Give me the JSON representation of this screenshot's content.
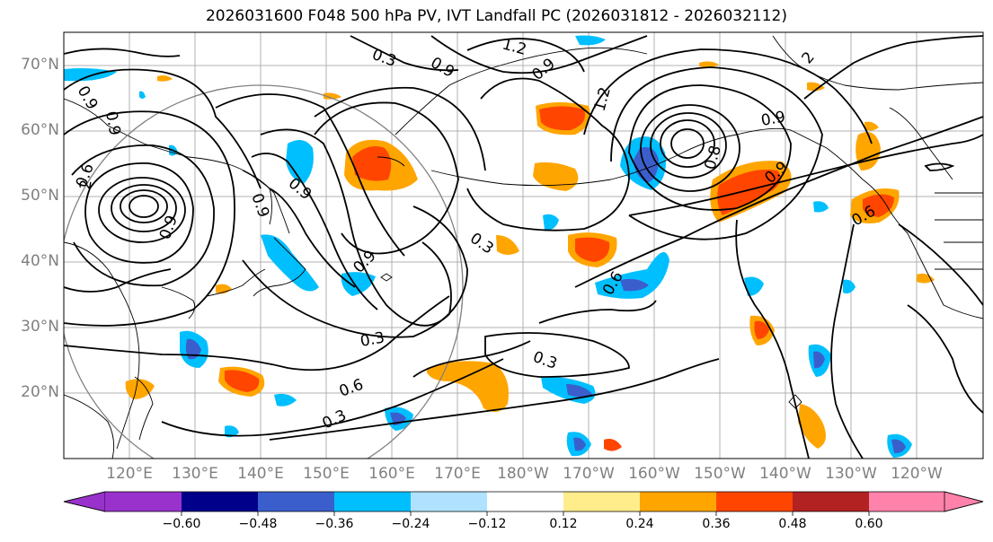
{
  "title": "2026031600 F048 500 hPa PV, IVT Landfall PC (2026031812 - 2026032112)",
  "lat_labels": [
    "70°N",
    "60°N",
    "50°N",
    "40°N",
    "30°N",
    "20°N"
  ],
  "lon_labels": [
    "120°E",
    "130°E",
    "140°E",
    "150°E",
    "160°E",
    "170°E",
    "180°W",
    "170°W",
    "160°W",
    "150°W",
    "140°W",
    "130°W",
    "120°W"
  ],
  "contour_labels": [
    "1.2",
    "0.3",
    "0.9",
    "0.9",
    "0.9",
    "2",
    "0.9",
    "0.9",
    "1.2",
    "0.6",
    "0.9",
    "0.9",
    "0.3",
    "0.9",
    "0.3",
    "0.6",
    "0.3",
    "0.3",
    "0.6",
    "0.6",
    "0.9",
    "0.8",
    "2",
    "0.9"
  ],
  "colorbar": {
    "ticks": [
      "−0.60",
      "−0.48",
      "−0.36",
      "−0.24",
      "−0.12",
      "0.12",
      "0.24",
      "0.36",
      "0.48",
      "0.60"
    ],
    "colors": [
      "#9932cc",
      "#00008b",
      "#3a5fcd",
      "#00bfff",
      "#b0e2ff",
      "#ffffff",
      "#ffec8b",
      "#ffa500",
      "#ff4500",
      "#b22222",
      "#ff82ab"
    ]
  },
  "colors": {
    "orange": "#ffa500",
    "redorange": "#ff4500",
    "yellow": "#ffec8b",
    "cyan": "#00bfff",
    "lightblue": "#b0e2ff",
    "royal": "#3a5fcd",
    "grid": "#b0b0b0",
    "label_gray": "#808080"
  }
}
